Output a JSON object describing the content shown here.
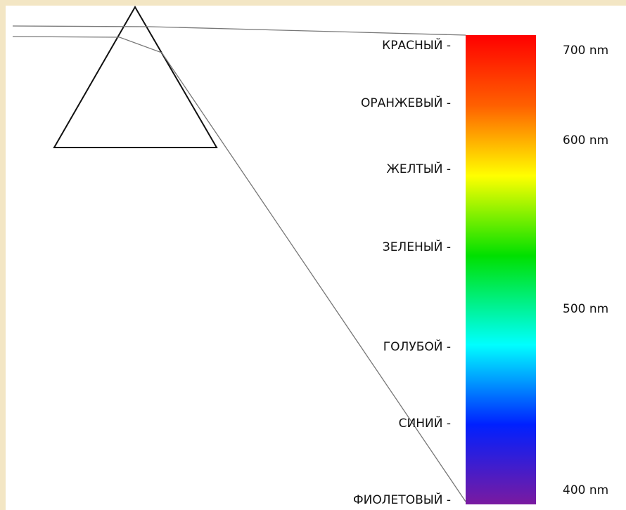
{
  "colors": [
    "КРАСНЫЙ -",
    "ОРАНЖЕВЫЙ -",
    "ЖЕЛТЫЙ -",
    "ЗЕЛЕНЫЙ -",
    "ГОЛУБОЙ -",
    "СИНИЙ -",
    "ФИОЛЕТОВЫЙ -"
  ],
  "wavelengths": [
    "700 nm",
    "600 nm",
    "500 nm",
    "400 nm"
  ]
}
